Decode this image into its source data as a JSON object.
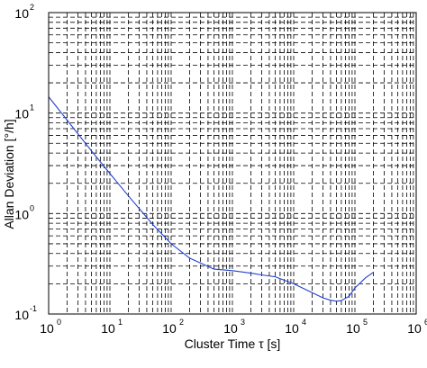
{
  "chart_data": {
    "type": "line",
    "title": "",
    "xlabel": "Cluster Time τ [s]",
    "ylabel": "Allan Deviation [°/h]",
    "xscale": "log",
    "yscale": "log",
    "xlim": [
      1,
      1000000
    ],
    "ylim": [
      0.1,
      100
    ],
    "grid": true,
    "grid_style": "dashed",
    "x_ticks": [
      {
        "base": "10",
        "exp": "0"
      },
      {
        "base": "10",
        "exp": "1"
      },
      {
        "base": "10",
        "exp": "2"
      },
      {
        "base": "10",
        "exp": "3"
      },
      {
        "base": "10",
        "exp": "4"
      },
      {
        "base": "10",
        "exp": "5"
      },
      {
        "base": "10",
        "exp": "6"
      }
    ],
    "y_ticks": [
      {
        "base": "10",
        "exp": "-1"
      },
      {
        "base": "10",
        "exp": "0"
      },
      {
        "base": "10",
        "exp": "1"
      },
      {
        "base": "10",
        "exp": "2"
      }
    ],
    "series": [
      {
        "color": "#2040d0",
        "x": [
          1,
          2,
          5,
          10,
          20,
          50,
          100,
          200,
          500,
          1000,
          2000,
          3000,
          5000,
          10000,
          20000,
          30000,
          40000,
          50000,
          60000,
          80000,
          100000,
          150000,
          200000
        ],
        "y": [
          14.5,
          8.5,
          4.2,
          2.5,
          1.5,
          0.78,
          0.5,
          0.36,
          0.28,
          0.27,
          0.255,
          0.245,
          0.235,
          0.2,
          0.163,
          0.145,
          0.137,
          0.134,
          0.136,
          0.15,
          0.182,
          0.23,
          0.26
        ]
      }
    ]
  }
}
